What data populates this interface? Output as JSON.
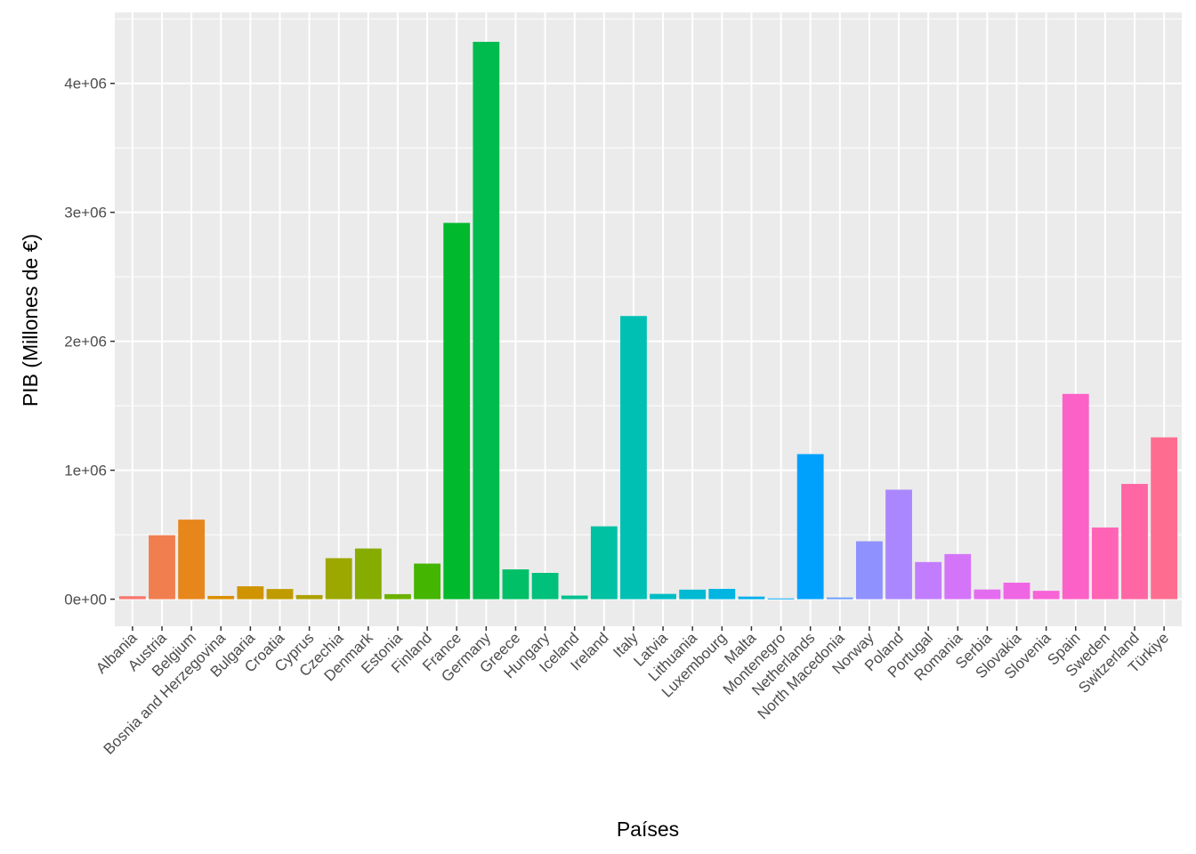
{
  "chart_data": {
    "type": "bar",
    "title": "",
    "xlabel": "Países",
    "ylabel": "PIB (Millones de €)",
    "ylim": [
      -210000,
      4550000
    ],
    "yticks": [
      0,
      1000000,
      2000000,
      3000000,
      4000000
    ],
    "ytick_labels": [
      "0e+00",
      "1e+06",
      "2e+06",
      "3e+06",
      "4e+06"
    ],
    "grid": true,
    "legend": "none",
    "categories": [
      "Albania",
      "Austria",
      "Belgium",
      "Bosnia and Herzegovina",
      "Bulgaria",
      "Croatia",
      "Cyprus",
      "Czechia",
      "Denmark",
      "Estonia",
      "Finland",
      "France",
      "Germany",
      "Greece",
      "Hungary",
      "Iceland",
      "Ireland",
      "Italy",
      "Latvia",
      "Lithuania",
      "Luxembourg",
      "Malta",
      "Montenegro",
      "Netherlands",
      "North Macedonia",
      "Norway",
      "Poland",
      "Portugal",
      "Romania",
      "Serbia",
      "Slovakia",
      "Slovenia",
      "Spain",
      "Sweden",
      "Switzerland",
      "Türkiye"
    ],
    "values": [
      23000,
      496000,
      617000,
      25000,
      100000,
      79000,
      32000,
      318000,
      393000,
      39000,
      276000,
      2918000,
      4322000,
      231000,
      204000,
      28000,
      565000,
      2196000,
      41000,
      74000,
      80000,
      20000,
      6000,
      1125000,
      13000,
      449000,
      849000,
      288000,
      350000,
      75000,
      128000,
      65000,
      1592000,
      556000,
      894000,
      1255000
    ],
    "colors": [
      "#F8766D",
      "#F07E4F",
      "#E7861B",
      "#DC8E00",
      "#CF9400",
      "#C09B00",
      "#AFA100",
      "#9CA700",
      "#86AC00",
      "#6BB100",
      "#44B500",
      "#00B92C",
      "#00BC4E",
      "#00BF66",
      "#00C17B",
      "#00C18F",
      "#00C1A2",
      "#00C0B4",
      "#00BDC4",
      "#00BAD3",
      "#00B5E1",
      "#00AFEC",
      "#00A8F6",
      "#00A0FD",
      "#6A9BFF",
      "#8F91FF",
      "#AB87FF",
      "#C27DFF",
      "#D474F8",
      "#E36CF0",
      "#EF66E5",
      "#F763D7",
      "#FC61C7",
      "#FF63B6",
      "#FF67A4",
      "#FE6D90"
    ]
  }
}
